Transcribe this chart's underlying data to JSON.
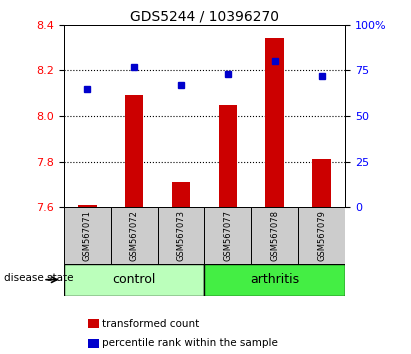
{
  "title": "GDS5244 / 10396270",
  "samples": [
    "GSM567071",
    "GSM567072",
    "GSM567073",
    "GSM567077",
    "GSM567078",
    "GSM567079"
  ],
  "transformed_count": [
    7.61,
    8.09,
    7.71,
    8.05,
    8.34,
    7.81
  ],
  "percentile_rank": [
    65,
    77,
    67,
    73,
    80,
    72
  ],
  "ylim_left": [
    7.6,
    8.4
  ],
  "ylim_right": [
    0,
    100
  ],
  "yticks_left": [
    7.6,
    7.8,
    8.0,
    8.2,
    8.4
  ],
  "yticks_right": [
    0,
    25,
    50,
    75,
    100
  ],
  "ytick_labels_right": [
    "0",
    "25",
    "50",
    "75",
    "100%"
  ],
  "groups": [
    {
      "label": "control",
      "indices": [
        0,
        1,
        2
      ],
      "color": "#bbffbb"
    },
    {
      "label": "arthritis",
      "indices": [
        3,
        4,
        5
      ],
      "color": "#44ee44"
    }
  ],
  "bar_color": "#cc0000",
  "marker_color": "#0000cc",
  "bar_width": 0.4,
  "sample_box_color": "#cccccc",
  "group_label_text": "disease state",
  "legend_items": [
    {
      "label": "transformed count",
      "color": "#cc0000"
    },
    {
      "label": "percentile rank within the sample",
      "color": "#0000cc"
    }
  ],
  "grid_dotted_at": [
    7.8,
    8.0,
    8.2
  ],
  "title_fontsize": 10,
  "tick_fontsize": 8,
  "sample_fontsize": 6,
  "group_fontsize": 9,
  "legend_fontsize": 7.5
}
